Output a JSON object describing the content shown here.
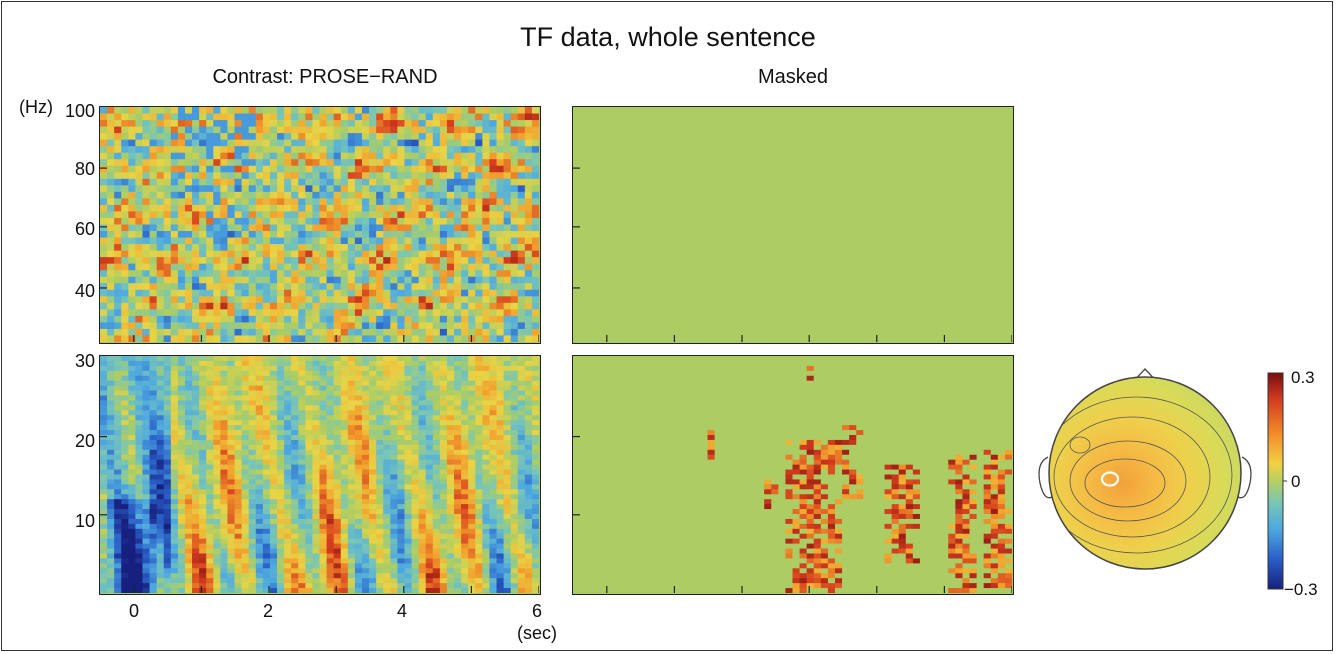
{
  "figure": {
    "title": "TF data, whole sentence",
    "left_title": "Contrast: PROSE−RAND",
    "right_title": "Masked",
    "y_unit_label": "(Hz)",
    "x_unit_label": "(sec)"
  },
  "chart_data": [
    {
      "type": "heatmap",
      "name": "contrast-high",
      "title": "Contrast: PROSE−RAND",
      "xlabel": "(sec)",
      "ylabel": "(Hz)",
      "xlim": [
        -0.5,
        6
      ],
      "ylim": [
        26,
        100
      ],
      "yticks": [
        40,
        60,
        80,
        100
      ],
      "colorscale": [
        -0.3,
        0.3
      ]
    },
    {
      "type": "heatmap",
      "name": "contrast-low",
      "xlabel": "(sec)",
      "xlim": [
        -0.5,
        6
      ],
      "ylim": [
        1,
        30
      ],
      "xticks": [
        0,
        2,
        4,
        6
      ],
      "yticks": [
        10,
        20,
        30
      ],
      "colorscale": [
        -0.3,
        0.3
      ]
    },
    {
      "type": "heatmap",
      "name": "masked-high",
      "title": "Masked",
      "xlim": [
        -0.5,
        6
      ],
      "ylim": [
        26,
        100
      ],
      "note_values": "all non-significant (0)"
    },
    {
      "type": "heatmap",
      "name": "masked-low",
      "xlim": [
        -0.5,
        6
      ],
      "ylim": [
        1,
        30
      ],
      "significant_clusters": [
        {
          "x": [
            1.4,
            1.55
          ],
          "y": [
            17,
            21
          ]
        },
        {
          "x": [
            2.3,
            2.45
          ],
          "y": [
            11,
            15
          ]
        },
        {
          "x": [
            2.6,
            3.4
          ],
          "y": [
            1,
            20
          ]
        },
        {
          "x": [
            3.4,
            3.7
          ],
          "y": [
            13,
            22
          ]
        },
        {
          "x": [
            4.1,
            4.6
          ],
          "y": [
            5,
            17
          ]
        },
        {
          "x": [
            5.0,
            5.4
          ],
          "y": [
            1,
            18
          ]
        },
        {
          "x": [
            5.5,
            5.9
          ],
          "y": [
            2,
            19
          ]
        },
        {
          "x": [
            2.9,
            3.0
          ],
          "y": [
            27,
            29
          ]
        }
      ]
    },
    {
      "type": "topomap",
      "name": "scalp-map",
      "colorbar": {
        "max_label": "0.3",
        "mid_label": "0",
        "min_label": "−0.3",
        "range": [
          -0.3,
          0.3
        ]
      }
    }
  ],
  "axes": {
    "left_top_yticks": [
      "100",
      "80",
      "60",
      "40"
    ],
    "left_bottom_yticks": [
      "30",
      "20",
      "10"
    ],
    "xticks": [
      "0",
      "2",
      "4",
      "6"
    ]
  }
}
